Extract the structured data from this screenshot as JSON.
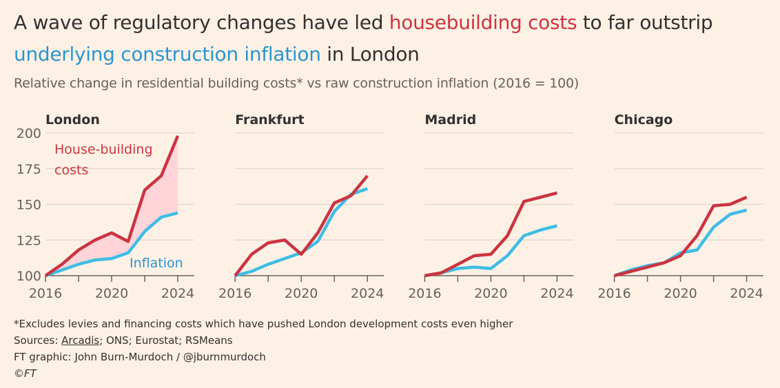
{
  "header": {
    "title_part1": "A wave of regulatory changes have led ",
    "title_highlight1": "housebuilding costs",
    "title_part2": " to far outstrip",
    "title_highlight2": "underlying construction inflation",
    "title_part3": " in London",
    "subtitle": "Relative change in residential building costs* vs raw construction inflation (2016 = 100)"
  },
  "colors": {
    "housebuilding": "#cc3340",
    "inflation": "#3fbde5",
    "fill": "#ffd0d6",
    "grid": "#e6d9ce",
    "axis": "#66605c"
  },
  "chart_data": [
    {
      "type": "line",
      "title": "London",
      "x": [
        2016,
        2017,
        2018,
        2019,
        2020,
        2021,
        2022,
        2023,
        2024
      ],
      "series": [
        {
          "name": "House-building costs",
          "values": [
            100,
            108,
            118,
            125,
            130,
            124,
            160,
            170,
            198
          ]
        },
        {
          "name": "Inflation",
          "values": [
            100,
            104,
            108,
            111,
            112,
            116,
            131,
            141,
            144
          ]
        }
      ],
      "ylim": [
        100,
        200
      ],
      "yticks": [
        "100",
        "125",
        "150",
        "175",
        "200"
      ],
      "xticks": [
        "2016",
        "2020",
        "2024"
      ],
      "annotations": {
        "house_line1": "House-building",
        "house_line2": "costs",
        "inflation": "Inflation"
      }
    },
    {
      "type": "line",
      "title": "Frankfurt",
      "x": [
        2016,
        2017,
        2018,
        2019,
        2020,
        2021,
        2022,
        2023,
        2024
      ],
      "series": [
        {
          "name": "House-building costs",
          "values": [
            100,
            115,
            123,
            125,
            115,
            130,
            151,
            156,
            170
          ]
        },
        {
          "name": "Inflation",
          "values": [
            100,
            103,
            108,
            112,
            116,
            124,
            145,
            157,
            161
          ]
        }
      ],
      "ylim": [
        100,
        200
      ],
      "xticks": [
        "2016",
        "2020",
        "2024"
      ]
    },
    {
      "type": "line",
      "title": "Madrid",
      "x": [
        2016,
        2017,
        2018,
        2019,
        2020,
        2021,
        2022,
        2023,
        2024
      ],
      "series": [
        {
          "name": "House-building costs",
          "values": [
            100,
            102,
            108,
            114,
            115,
            128,
            152,
            155,
            158
          ]
        },
        {
          "name": "Inflation",
          "values": [
            100,
            102,
            105,
            106,
            105,
            114,
            128,
            132,
            135
          ]
        }
      ],
      "ylim": [
        100,
        200
      ],
      "xticks": [
        "2016",
        "2020",
        "2024"
      ]
    },
    {
      "type": "line",
      "title": "Chicago",
      "x": [
        2016,
        2017,
        2018,
        2019,
        2020,
        2021,
        2022,
        2023,
        2024
      ],
      "series": [
        {
          "name": "House-building costs",
          "values": [
            100,
            103,
            106,
            109,
            114,
            128,
            149,
            150,
            155
          ]
        },
        {
          "name": "Inflation",
          "values": [
            100,
            104,
            107,
            109,
            116,
            118,
            134,
            143,
            146
          ]
        }
      ],
      "ylim": [
        100,
        200
      ],
      "xticks": [
        "2016",
        "2020",
        "2024"
      ]
    }
  ],
  "footer": {
    "note": "*Excludes levies and financing costs which have pushed London development costs even higher",
    "sources_label": "Sources: ",
    "sources_link": "Arcadis",
    "sources_rest": "; ONS; Eurostat; RSMeans",
    "credit": "FT graphic: John Burn-Murdoch / @jburnmurdoch",
    "copyright": "©FT"
  }
}
